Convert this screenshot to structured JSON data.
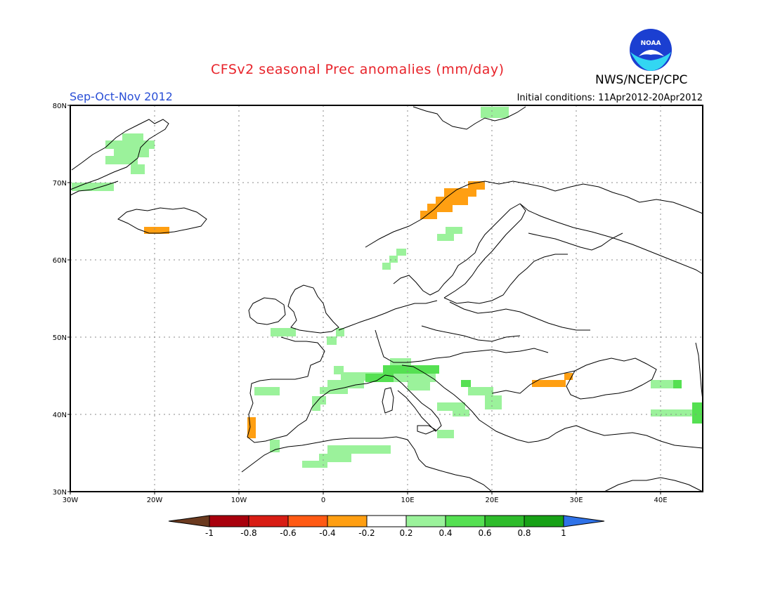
{
  "header": {
    "title": "CFSv2 seasonal Prec anomalies (mm/day)",
    "season": "Sep-Oct-Nov 2012",
    "initial_conditions": "Initial conditions: 11Apr2012-20Apr2012",
    "organization": "NWS/NCEP/CPC",
    "logo_text": "NOAA"
  },
  "map": {
    "lon_range": [
      -30,
      45
    ],
    "lat_range": [
      30,
      80
    ],
    "lon_ticks": [
      "30W",
      "20W",
      "10W",
      "0",
      "10E",
      "20E",
      "30E",
      "40E"
    ],
    "lat_ticks": [
      "30N",
      "40N",
      "50N",
      "60N",
      "70N",
      "80N"
    ],
    "grid": true
  },
  "colorbar": {
    "labels": [
      "-1",
      "-0.8",
      "-0.6",
      "-0.4",
      "-0.2",
      "0.2",
      "0.4",
      "0.6",
      "0.8",
      "1"
    ],
    "colors": [
      "#6b3a1f",
      "#a8000c",
      "#d81d14",
      "#ff5a14",
      "#ff9f12",
      "#ffffff",
      "#9bf29b",
      "#55e052",
      "#2ebc2b",
      "#17a116",
      "#2f72e8"
    ]
  },
  "colors": {
    "positive_light": "#9bf29b",
    "positive_mid": "#55e052",
    "negative_light": "#ff9f12",
    "title_red": "#e8232a",
    "season_blue": "#2a4fd6"
  }
}
